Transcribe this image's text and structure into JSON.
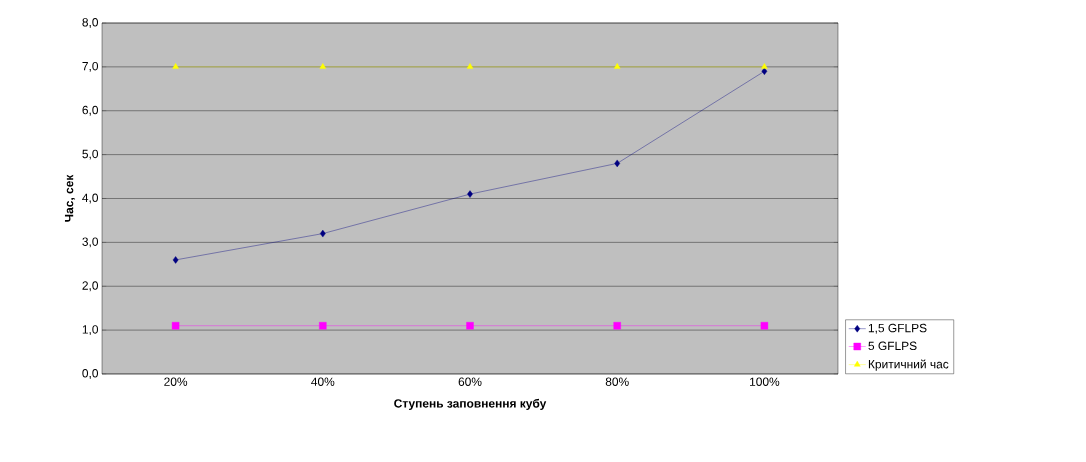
{
  "chart_data": {
    "type": "line",
    "xlabel": "Ступень заповнення кубу",
    "ylabel": "Час, сек",
    "categories": [
      "20%",
      "40%",
      "60%",
      "80%",
      "100%"
    ],
    "series": [
      {
        "name": "1,5 GFLPS",
        "color": "#000080",
        "marker": "diamond",
        "values": [
          2.6,
          3.2,
          4.1,
          4.8,
          6.9
        ]
      },
      {
        "name": "5 GFLPS",
        "color": "#ff00ff",
        "marker": "square",
        "values": [
          1.1,
          1.1,
          1.1,
          1.1,
          1.1
        ]
      },
      {
        "name": "Критичний час",
        "color": "#ffff00",
        "marker": "triangle",
        "values": [
          7.0,
          7.0,
          7.0,
          7.0,
          7.0
        ]
      }
    ],
    "ylim": [
      0,
      8
    ],
    "yticks": [
      {
        "value": 0,
        "label": "0,0"
      },
      {
        "value": 1,
        "label": "1,0"
      },
      {
        "value": 2,
        "label": "2,0"
      },
      {
        "value": 3,
        "label": "3,0"
      },
      {
        "value": 4,
        "label": "4,0"
      },
      {
        "value": 5,
        "label": "5,0"
      },
      {
        "value": 6,
        "label": "6,0"
      },
      {
        "value": 7,
        "label": "7,0"
      },
      {
        "value": 8,
        "label": "8,0"
      }
    ],
    "grid": "y",
    "legend": "bottom right",
    "line_style": "solid"
  }
}
